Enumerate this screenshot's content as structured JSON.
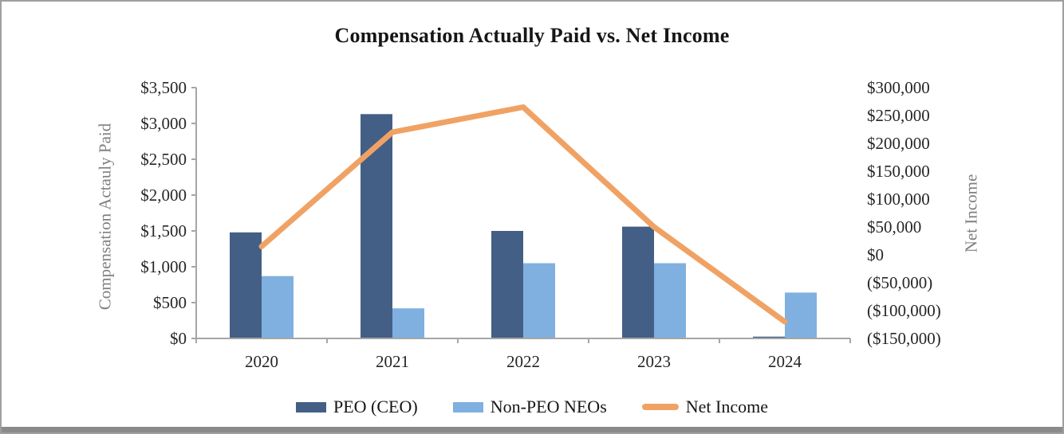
{
  "chart_data": {
    "type": "combo",
    "title": "Compensation Actually Paid vs. Net Income",
    "categories": [
      "2020",
      "2021",
      "2022",
      "2023",
      "2024"
    ],
    "series": [
      {
        "name": "PEO (CEO)",
        "type": "bar",
        "axis": "left",
        "color": "#445F85",
        "values": [
          1480,
          3130,
          1500,
          1560,
          25
        ]
      },
      {
        "name": "Non-PEO NEOs",
        "type": "bar",
        "axis": "left",
        "color": "#7FB0E0",
        "values": [
          870,
          420,
          1050,
          1050,
          640
        ]
      },
      {
        "name": "Net Income",
        "type": "line",
        "axis": "right",
        "color": "#F0A264",
        "values": [
          15000,
          220000,
          265000,
          50000,
          -120000
        ]
      }
    ],
    "left_ylabel": "Compensation Actauly Paid",
    "right_ylabel": "Net Income",
    "left_ylim": [
      0,
      3500
    ],
    "left_step": 500,
    "left_tick_labels": [
      "$3,500",
      "$3,000",
      "$2,500",
      "$2,000",
      "$1,500",
      "$1,000",
      "$500",
      "$0"
    ],
    "right_ylim": [
      -150000,
      300000
    ],
    "right_step": 50000,
    "right_tick_labels": [
      "$300,000",
      "$250,000",
      "$200,000",
      "$150,000",
      "$100,000",
      "$50,000",
      "$0",
      "($50,000)",
      "($100,000)",
      "($150,000)"
    ],
    "grid": false,
    "legend_position": "bottom",
    "axis_color": "#a6a6a6"
  }
}
